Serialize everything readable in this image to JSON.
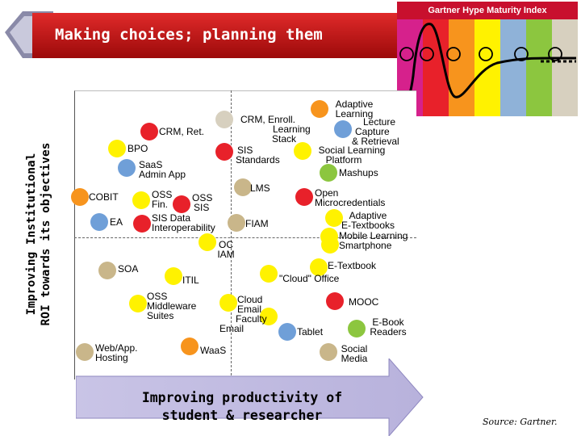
{
  "hype_index": {
    "title": "Gartner Hype Maturity Index",
    "strip_colors": [
      "#d6218c",
      "#e8212a",
      "#f7941d",
      "#fff200",
      "#8fb2d8",
      "#8cc63f",
      "#d7d0bf"
    ]
  },
  "banner": {
    "title": "Making choices; planning them"
  },
  "y_axis": {
    "line1": "Improving Institutional",
    "line2": "ROI towards its objectives"
  },
  "x_axis": {
    "line1": "Improving productivity of",
    "line2": "student & researcher"
  },
  "source": "Source: Gartner.",
  "maturity_colors": {
    "magenta": "#d6218c",
    "red": "#e8212a",
    "orange": "#f7941d",
    "yellow": "#fff200",
    "blue": "#6f9fd8",
    "green": "#8cc63f",
    "tan": "#c9b68a"
  },
  "items": {
    "crm_ret": "CRM, Ret.",
    "bpo": "BPO",
    "saas_admin_1": "SaaS",
    "saas_admin_2": "Admin App",
    "crm_enroll_1": "CRM, Enroll.",
    "crm_enroll_2": "Learning",
    "crm_enroll_3": "Stack",
    "sis_std_1": "SIS",
    "sis_std_2": "Standards",
    "adaptive_learning_1": "Adaptive",
    "adaptive_learning_2": "Learning",
    "lecture_1": "Lecture",
    "lecture_2": "Capture",
    "lecture_3": "& Retrieval",
    "social_learning_1": "Social Learning",
    "social_learning_2": "Platform",
    "mashups": "Mashups",
    "lms": "LMS",
    "open_micro_1": "Open",
    "open_micro_2": "Microcredentials",
    "cobit": "COBIT",
    "oss_fin_1": "OSS",
    "oss_fin_2": "Fin.",
    "oss_sis_1": "OSS",
    "oss_sis_2": "SIS",
    "adaptive_etext_1": "Adaptive",
    "adaptive_etext_2": "E-Textbooks",
    "ea": "EA",
    "sis_data_1": "SIS Data",
    "sis_data_2": "Interoperability",
    "fiam": "FIAM",
    "mobile_learning": "Mobile Learning",
    "smartphone": "Smartphone",
    "oc_iam_1": "OC",
    "oc_iam_2": "IAM",
    "soa": "SOA",
    "etextbook": "E-Textbook",
    "cloud_office": "\"Cloud\" Office",
    "itil": "ITIL",
    "oss_mw_1": "OSS",
    "oss_mw_2": "Middleware",
    "oss_mw_3": "Suites",
    "cloud_email_1": "Cloud",
    "cloud_email_2": "Email",
    "faculty_email_1": "Faculty",
    "faculty_email_2": "Email",
    "mooc": "MOOC",
    "tablet": "Tablet",
    "ebook_1": "E-Book",
    "ebook_2": "Readers",
    "web_hosting_1": "Web/App.",
    "web_hosting_2": "Hosting",
    "waas": "WaaS",
    "social_media_1": "Social",
    "social_media_2": "Media"
  }
}
